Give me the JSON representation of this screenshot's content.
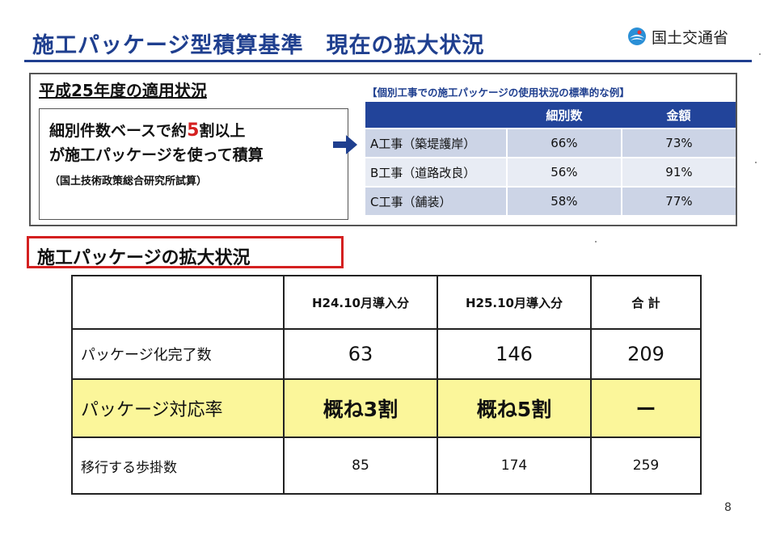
{
  "header": {
    "title": "施工パッケージ型積算基準　現在の拡大状況",
    "org_name": "国土交通省"
  },
  "section1": {
    "title": "平成25年度の適用状況",
    "callout_line1_pre": "細別件数ベースで約",
    "callout_highlight": "5",
    "callout_line1_post": "割以上",
    "callout_line2": "が施工パッケージを使って積算",
    "callout_note": "（国土技術政策総合研究所試算）",
    "example_title": "【個別工事での施工パッケージの使用状況の標準的な例】",
    "example_table": {
      "headers": [
        "",
        "細別数",
        "金額"
      ],
      "rows": [
        [
          "A工事（築堤護岸）",
          "66%",
          "73%"
        ],
        [
          "B工事（道路改良）",
          "56%",
          "91%"
        ],
        [
          "C工事（舗装）",
          "58%",
          "77%"
        ]
      ]
    }
  },
  "section2": {
    "title": "施工パッケージの拡大状況",
    "table": {
      "headers": [
        "",
        "H24.10月導入分",
        "H25.10月導入分",
        "合 計"
      ],
      "rows": [
        [
          "パッケージ化完了数",
          "63",
          "146",
          "209"
        ],
        [
          "パッケージ対応率",
          "概ね3割",
          "概ね5割",
          "ー"
        ],
        [
          "移行する歩掛数",
          "85",
          "174",
          "259"
        ]
      ]
    }
  },
  "page_number": "8",
  "colors": {
    "title_blue": "#1f3f8f",
    "table_header_blue": "#22449a",
    "highlight_red": "#d42020",
    "highlight_yellow": "#fbf69a"
  }
}
